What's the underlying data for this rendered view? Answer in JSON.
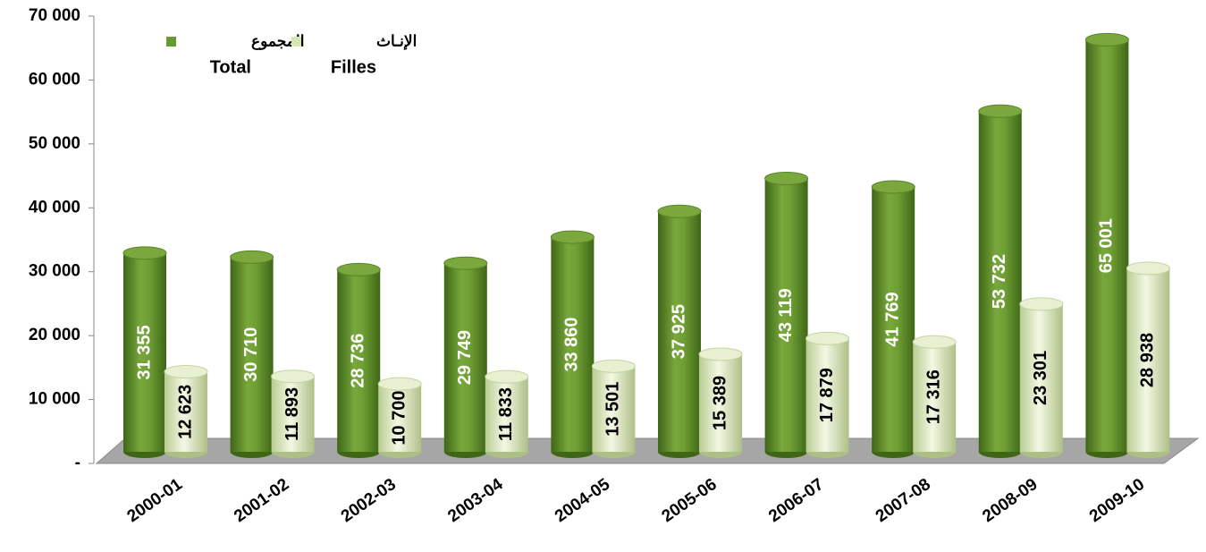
{
  "chart_data": {
    "type": "bar",
    "categories": [
      "2000-01",
      "2001-02",
      "2002-03",
      "2003-04",
      "2004-05",
      "2005-06",
      "2006-07",
      "2007-08",
      "2008-09",
      "2009-10"
    ],
    "series": [
      {
        "name": "Total",
        "name_ar": "المجموع",
        "color": "#6a9a2e",
        "values": [
          31355,
          30710,
          28736,
          29749,
          33860,
          37925,
          43119,
          41769,
          53732,
          65001
        ],
        "value_labels": [
          "31 355",
          "30 710",
          "28 736",
          "29 749",
          "33 860",
          "37 925",
          "43 119",
          "41 769",
          "53 732",
          "65 001"
        ]
      },
      {
        "name": "Filles",
        "name_ar": "الإنـاث",
        "color": "#e2edc8",
        "values": [
          12623,
          11893,
          10700,
          11833,
          13501,
          15389,
          17879,
          17316,
          23301,
          28938
        ],
        "value_labels": [
          "12 623",
          "11 893",
          "10 700",
          "11 833",
          "13 501",
          "15 389",
          "17 879",
          "17 316",
          "23 301",
          "28 938"
        ]
      }
    ],
    "ylim": [
      0,
      70000
    ],
    "yticks": [
      {
        "value": 0,
        "label": "-"
      },
      {
        "value": 10000,
        "label": "10 000"
      },
      {
        "value": 20000,
        "label": "20 000"
      },
      {
        "value": 30000,
        "label": "30 000"
      },
      {
        "value": 40000,
        "label": "40 000"
      },
      {
        "value": 50000,
        "label": "50 000"
      },
      {
        "value": 60000,
        "label": "60 000"
      },
      {
        "value": 70000,
        "label": "70 000"
      }
    ],
    "legend": "upper left"
  }
}
